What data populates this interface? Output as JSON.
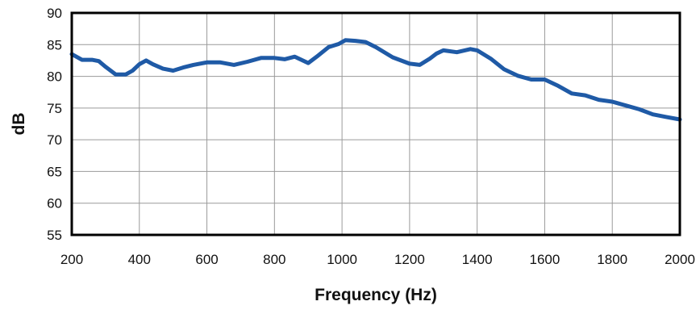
{
  "chart_data": {
    "type": "line",
    "title": "",
    "xlabel": "Frequency (Hz)",
    "ylabel": "dB",
    "xlim": [
      200,
      2000
    ],
    "ylim": [
      55,
      90
    ],
    "x_ticks": [
      200,
      400,
      600,
      800,
      1000,
      1200,
      1400,
      1600,
      1800,
      2000
    ],
    "y_ticks": [
      55,
      60,
      65,
      70,
      75,
      80,
      85,
      90
    ],
    "grid": true,
    "line_color": "#1f5aa6",
    "frame_color": "#000000",
    "series": [
      {
        "x": [
          200,
          230,
          260,
          280,
          300,
          330,
          360,
          380,
          400,
          420,
          440,
          470,
          500,
          530,
          560,
          600,
          640,
          680,
          720,
          760,
          800,
          830,
          860,
          900,
          930,
          960,
          990,
          1010,
          1040,
          1070,
          1100,
          1150,
          1200,
          1230,
          1260,
          1280,
          1300,
          1340,
          1380,
          1400,
          1440,
          1480,
          1520,
          1560,
          1600,
          1640,
          1680,
          1720,
          1760,
          1800,
          1840,
          1880,
          1920,
          1960,
          2000
        ],
        "values": [
          83.5,
          82.6,
          82.6,
          82.4,
          81.5,
          80.3,
          80.3,
          80.9,
          81.9,
          82.5,
          81.9,
          81.2,
          80.9,
          81.4,
          81.8,
          82.2,
          82.2,
          81.8,
          82.3,
          82.9,
          82.9,
          82.7,
          83.1,
          82.1,
          83.3,
          84.6,
          85.1,
          85.7,
          85.6,
          85.4,
          84.6,
          83.0,
          82.0,
          81.8,
          82.8,
          83.6,
          84.1,
          83.8,
          84.3,
          84.1,
          82.8,
          81.1,
          80.1,
          79.5,
          79.5,
          78.5,
          77.3,
          77.0,
          76.3,
          76.0,
          75.4,
          74.8,
          74.0,
          73.6,
          73.2
        ]
      }
    ]
  }
}
